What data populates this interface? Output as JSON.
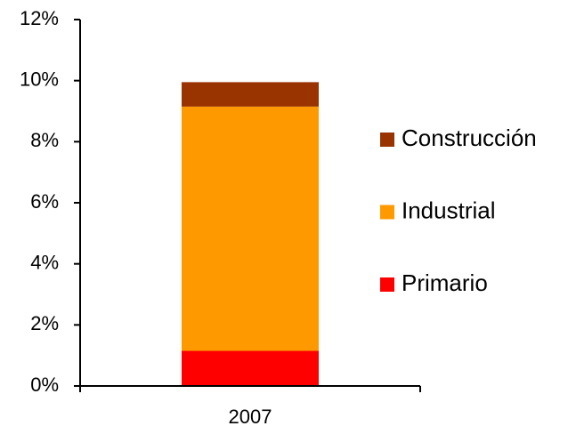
{
  "chart_data": {
    "type": "stacked_bar",
    "categories": [
      "2007"
    ],
    "series": [
      {
        "name": "Primario",
        "color": "#ff0000",
        "values": [
          1.15
        ]
      },
      {
        "name": "Industrial",
        "color": "#ff9900",
        "values": [
          8.0
        ]
      },
      {
        "name": "Construcción",
        "color": "#993300",
        "values": [
          0.8
        ]
      }
    ],
    "ylim": [
      0,
      12
    ],
    "yticks": [
      {
        "value": 0,
        "label": "0%"
      },
      {
        "value": 2,
        "label": "2%"
      },
      {
        "value": 4,
        "label": "4%"
      },
      {
        "value": 6,
        "label": "6%"
      },
      {
        "value": 8,
        "label": "8%"
      },
      {
        "value": 10,
        "label": "10%"
      },
      {
        "value": 12,
        "label": "12%"
      }
    ],
    "legend": "right"
  }
}
